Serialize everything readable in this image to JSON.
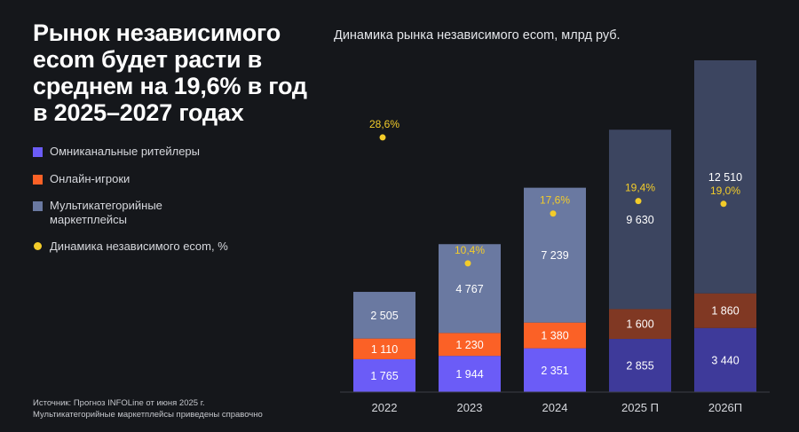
{
  "headline": "Рынок независимого ecom будет расти в среднем на 19,6% в год в 2025–2027 годах",
  "legend": {
    "omni": "Омниканальные ритейлеры",
    "online": "Онлайн-игроки",
    "market": "Мультикатегорийные маркетплейсы",
    "dynamics": "Динамика независимого ecom, %"
  },
  "source_line1": "Источник: Прогноз INFOLine от июня 2025 г.",
  "source_line2": "Мультикатегорийные маркетплейсы приведены справочно",
  "chart_data": {
    "type": "bar",
    "title": "Динамика рынка независимого ecom, млрд руб.",
    "categories": [
      "2022",
      "2023",
      "2024",
      "2025 П",
      "2026П"
    ],
    "stacked": true,
    "series": [
      {
        "name": "Омниканальные ритейлеры",
        "values": [
          1765,
          1944,
          2351,
          2855,
          3440
        ],
        "labels": [
          "1 765",
          "1 944",
          "2 351",
          "2 855",
          "3 440"
        ]
      },
      {
        "name": "Онлайн-игроки",
        "values": [
          1110,
          1230,
          1380,
          1600,
          1860
        ],
        "labels": [
          "1 110",
          "1 230",
          "1 380",
          "1 600",
          "1 860"
        ]
      },
      {
        "name": "Мультикатегорийные маркетплейсы",
        "values": [
          2505,
          4767,
          7239,
          9630,
          12510
        ],
        "labels": [
          "2 505",
          "4 767",
          "7 239",
          "9 630",
          "12 510"
        ]
      }
    ],
    "growth": {
      "name": "Динамика независимого ecom, %",
      "values": [
        28.6,
        10.4,
        17.6,
        19.4,
        19.0
      ],
      "labels": [
        "28,6%",
        "10,4%",
        "17,6%",
        "19,4%",
        "19,0%"
      ]
    },
    "colors": {
      "omni": [
        "#6b5cf7",
        "#6b5cf7",
        "#6b5cf7",
        "#3e3a9a",
        "#3e3a9a"
      ],
      "online": [
        "#fb6126",
        "#fb6126",
        "#fb6126",
        "#803823",
        "#803823"
      ],
      "market": [
        "#6a79a1",
        "#6a79a1",
        "#6a79a1",
        "#3c4560",
        "#3c4560"
      ],
      "dot": "#f3cc2a",
      "legend_omni": "#6b5cf7",
      "legend_online": "#fb6126",
      "legend_market": "#6a79a1"
    },
    "grid": false,
    "legend_position": "left"
  }
}
